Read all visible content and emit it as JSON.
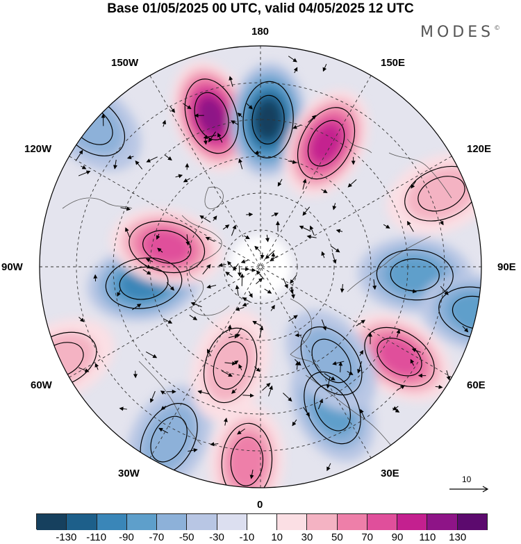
{
  "title": "Base 01/05/2025 00 UTC, valid 04/05/2025 12 UTC",
  "brand": "MODES",
  "brand_mark": "©",
  "longitude_labels": {
    "lon_180": "180",
    "lon_150e": "150E",
    "lon_120e": "120E",
    "lon_90e": "90E",
    "lon_60e": "60E",
    "lon_30e": "30E",
    "lon_0": "0",
    "lon_30w": "30W",
    "lon_60w": "60W",
    "lon_90w": "90W",
    "lon_120w": "120W",
    "lon_150w": "150W"
  },
  "reference_vector": "10",
  "colorbar": {
    "labels": [
      "-130",
      "-110",
      "-90",
      "-70",
      "-50",
      "-30",
      "-10",
      "10",
      "30",
      "50",
      "70",
      "90",
      "110",
      "130"
    ],
    "colors": [
      "#16405e",
      "#1d5f8a",
      "#3a86b8",
      "#5e9fcb",
      "#8db1d9",
      "#b8c6e4",
      "#dcdff0",
      "#ffffff",
      "#fbdfe4",
      "#f4b3c3",
      "#ee7fa9",
      "#e04f9b",
      "#c4208f",
      "#8e1487",
      "#5c0a6e"
    ]
  },
  "anomaly_centers": [
    {
      "name": "pos-150w",
      "lon": -162,
      "lat": 47,
      "value": 130
    },
    {
      "name": "neg-170w",
      "lon": 177,
      "lat": 50,
      "value": -130
    },
    {
      "name": "pos-160e",
      "lon": 152,
      "lat": 52,
      "value": 110
    },
    {
      "name": "pos-120e",
      "lon": 112,
      "lat": 37,
      "value": 50
    },
    {
      "name": "neg-90e",
      "lon": 87,
      "lat": 48,
      "value": -70
    },
    {
      "name": "neg-85e",
      "lon": 78,
      "lat": 30,
      "value": -70
    },
    {
      "name": "pos-60e",
      "lon": 57,
      "lat": 45,
      "value": 90
    },
    {
      "name": "neg-30e",
      "lon": 27,
      "lat": 47,
      "value": -70
    },
    {
      "name": "neg-40e",
      "lon": 37,
      "lat": 58,
      "value": -50
    },
    {
      "name": "pos-0",
      "lon": -4,
      "lat": 37,
      "value": 70
    },
    {
      "name": "neg-25w",
      "lon": -28,
      "lat": 37,
      "value": -50
    },
    {
      "name": "pos-20w",
      "lon": -17,
      "lat": 62,
      "value": 50
    },
    {
      "name": "pos-65w",
      "lon": -65,
      "lat": 30,
      "value": 50
    },
    {
      "name": "neg-70w",
      "lon": -82,
      "lat": 58,
      "value": -90
    },
    {
      "name": "pos-100w",
      "lon": -102,
      "lat": 64,
      "value": 90
    },
    {
      "name": "neg-125w",
      "lon": -130,
      "lat": 30,
      "value": -50
    }
  ]
}
